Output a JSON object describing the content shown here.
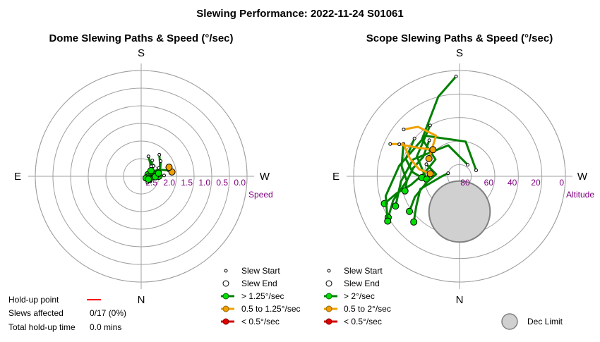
{
  "title": "Slewing Performance: 2022-11-24 S01061",
  "colors": {
    "fast": "#008000",
    "fast_fill": "#00e000",
    "medium": "#f0a000",
    "medium_fill": "#f0a000",
    "slow": "#d00000",
    "slow_fill": "#e00000",
    "ring": "#a0a0a0",
    "tick_label": "#800080",
    "holdup_line": "#ff0000",
    "dec_limit_fill": "#d0d0d0",
    "dec_limit_stroke": "#808080"
  },
  "dome": {
    "subtitle": "Dome Slewing Paths & Speed (°/sec)",
    "legend": {
      "slew_start": "Slew Start",
      "slew_end": "Slew End",
      "fast": "> 1.25°/sec",
      "medium": "0.5 to 1.25°/sec",
      "slow": "< 0.5°/sec"
    },
    "stats": {
      "holdup_label": "Hold-up point",
      "slews_label": "Slews affected",
      "slews_value": "0/17 (0%)",
      "total_label": "Total hold-up time",
      "total_value": "0.0 mins"
    }
  },
  "scope": {
    "subtitle": "Scope Slewing Paths & Speed (°/sec)",
    "legend": {
      "slew_start": "Slew Start",
      "slew_end": "Slew End",
      "fast": "> 2°/sec",
      "medium": "0.5 to 2°/sec",
      "slow": "< 0.5°/sec",
      "dec_limit": "Dec Limit"
    }
  },
  "chart_data": [
    {
      "type": "polar-path",
      "title": "Dome Slewing Paths & Speed (°/sec)",
      "directions": {
        "top": "S",
        "bottom": "N",
        "left": "E",
        "right": "W"
      },
      "radial_label": "Speed",
      "radial_ticks": [
        "2.5",
        "2.0",
        "1.5",
        "1.0",
        "0.5",
        "0.0"
      ],
      "radial_tick_values": [
        2.5,
        2.0,
        1.5,
        1.0,
        0.5,
        0.0
      ],
      "radial_range_inverted": [
        3.0,
        0.0
      ],
      "grid": true,
      "note": "dome paths cluster near the center-left (high speed); most slews > 1.25°/sec, two medium-speed points",
      "series": [
        {
          "name": "> 1.25°/sec",
          "color": "fast",
          "paths": [
            {
              "pts": [
                [
                  258,
                  2.2
                ],
                [
                  250,
                  2.45
                ],
                [
                  245,
                  2.7
                ]
              ],
              "end": true
            },
            {
              "pts": [
                [
                  215,
                  2.45
                ],
                [
                  225,
                  2.6
                ],
                [
                  240,
                  2.75
                ],
                [
                  255,
                  2.8
                ]
              ],
              "end": true
            },
            {
              "pts": [
                [
                  200,
                  2.4
                ],
                [
                  215,
                  2.55
                ],
                [
                  230,
                  2.65
                ],
                [
                  250,
                  2.7
                ],
                [
                  265,
                  2.7
                ]
              ],
              "end": true
            },
            {
              "pts": [
                [
                  220,
                  2.2
                ],
                [
                  235,
                  2.35
                ],
                [
                  255,
                  2.45
                ],
                [
                  270,
                  2.5
                ]
              ],
              "end": true
            },
            {
              "pts": [
                [
                  245,
                  2.45
                ],
                [
                  255,
                  2.6
                ],
                [
                  265,
                  2.7
                ],
                [
                  280,
                  2.75
                ]
              ],
              "end": true
            },
            {
              "pts": [
                [
                  230,
                  2.55
                ],
                [
                  245,
                  2.7
                ],
                [
                  260,
                  2.75
                ],
                [
                  275,
                  2.8
                ]
              ],
              "end": true
            },
            {
              "pts": [
                [
                  240,
                  2.65
                ],
                [
                  255,
                  2.75
                ],
                [
                  270,
                  2.82
                ],
                [
                  290,
                  2.85
                ]
              ],
              "end": true
            },
            {
              "pts": [
                [
                  268,
                  2.35
                ],
                [
                  270,
                  2.5
                ],
                [
                  272,
                  2.6
                ]
              ],
              "end": true
            },
            {
              "pts": [
                [
                  232,
                  2.3
                ],
                [
                  245,
                  2.4
                ],
                [
                  260,
                  2.5
                ]
              ],
              "end": true
            },
            {
              "pts": [
                [
                  300,
                  2.7
                ],
                [
                  295,
                  2.72
                ],
                [
                  288,
                  2.75
                ]
              ],
              "end": true
            },
            {
              "pts": [
                [
                  225,
                  2.6
                ],
                [
                  232,
                  2.65
                ],
                [
                  240,
                  2.68
                ]
              ],
              "end": true
            },
            {
              "pts": [
                [
                  315,
                  2.75
                ],
                [
                  305,
                  2.76
                ],
                [
                  292,
                  2.78
                ]
              ],
              "end": true
            }
          ]
        },
        {
          "name": "0.5 to 1.25°/sec",
          "color": "medium",
          "paths": [
            {
              "pts": [
                [
                  263,
                  2.1
                ],
                [
                  262,
                  2.12
                ]
              ],
              "end": true
            },
            {
              "pts": [
                [
                  250,
                  2.15
                ],
                [
                  252,
                  2.17
                ]
              ],
              "end": true
            }
          ]
        },
        {
          "name": "< 0.5°/sec",
          "color": "slow",
          "paths": []
        }
      ]
    },
    {
      "type": "polar-path",
      "title": "Scope Slewing Paths & Speed (°/sec)",
      "directions": {
        "top": "S",
        "bottom": "N",
        "left": "E",
        "right": "W"
      },
      "radial_label": "Altitude",
      "radial_ticks": [
        "80",
        "60",
        "40",
        "20",
        "0"
      ],
      "radial_tick_values": [
        80,
        60,
        40,
        20,
        0
      ],
      "radial_range_inverted": [
        90,
        0
      ],
      "grid": true,
      "dec_limit": {
        "azimuth": 0,
        "altitude": 60,
        "radius_deg": 20
      },
      "series": [
        {
          "name": "> 2°/sec",
          "color": "fast",
          "paths": [
            {
              "pts": [
                [
                  178,
                  5
                ],
                [
                  165,
                  20
                ],
                [
                  135,
                  45
                ],
                [
                  125,
                  65
                ],
                [
                  95,
                  60
                ],
                [
                  80,
                  48
                ],
                [
                  75,
                  35
                ],
                [
                  70,
                  22
                ]
              ],
              "end": true
            },
            {
              "pts": [
                [
                  130,
                  40
                ],
                [
                  108,
                  42
                ],
                [
                  95,
                  50
                ],
                [
                  88,
                  58
                ]
              ],
              "end": true
            },
            {
              "pts": [
                [
                  150,
                  40
                ],
                [
                  115,
                  50
                ],
                [
                  100,
                  58
                ],
                [
                  85,
                  62
                ]
              ],
              "end": true
            },
            {
              "pts": [
                [
                  140,
                  50
                ],
                [
                  118,
                  55
                ],
                [
                  100,
                  50
                ],
                [
                  85,
                  45
                ],
                [
                  75,
                  42
                ]
              ],
              "end": true
            },
            {
              "pts": [
                [
                  120,
                  35
                ],
                [
                  100,
                  40
                ],
                [
                  85,
                  45
                ],
                [
                  70,
                  30
                ],
                [
                  60,
                  20
                ]
              ],
              "end": true
            },
            {
              "pts": [
                [
                  110,
                  60
                ],
                [
                  95,
                  70
                ],
                [
                  80,
                  62
                ],
                [
                  65,
                  48
                ],
                [
                  55,
                  38
                ]
              ],
              "end": true
            },
            {
              "pts": [
                [
                  105,
                  80
                ],
                [
                  90,
                  75
                ],
                [
                  72,
                  55
                ],
                [
                  55,
                  45
                ],
                [
                  45,
                  35
                ]
              ],
              "end": true
            },
            {
              "pts": [
                [
                  215,
                  78
                ],
                [
                  160,
                  62
                ],
                [
                  110,
                  48
                ],
                [
                  85,
                  40
                ],
                [
                  65,
                  30
                ]
              ],
              "end": true
            },
            {
              "pts": [
                [
                  250,
                  75
                ],
                [
                  190,
                  60
                ],
                [
                  140,
                  45
                ],
                [
                  100,
                  38
                ],
                [
                  75,
                  25
                ],
                [
                  58,
                  18
                ]
              ],
              "end": true
            }
          ]
        },
        {
          "name": "0.5 to 2°/sec",
          "color": "medium",
          "paths": [
            {
              "pts": [
                [
                  115,
                  25
                ],
                [
                  120,
                  35
                ],
                [
                  110,
                  45
                ],
                [
                  100,
                  55
                ],
                [
                  95,
                  65
                ]
              ],
              "end": true
            },
            {
              "pts": [
                [
                  130,
                  28
                ],
                [
                  140,
                  35
                ],
                [
                  150,
                  50
                ],
                [
                  120,
                  60
                ]
              ],
              "end": true
            },
            {
              "pts": [
                [
                  118,
                  32
                ],
                [
                  125,
                  48
                ],
                [
                  135,
                  58
                ]
              ],
              "end": true
            }
          ]
        },
        {
          "name": "< 0.5°/sec",
          "color": "slow",
          "paths": []
        }
      ]
    }
  ]
}
